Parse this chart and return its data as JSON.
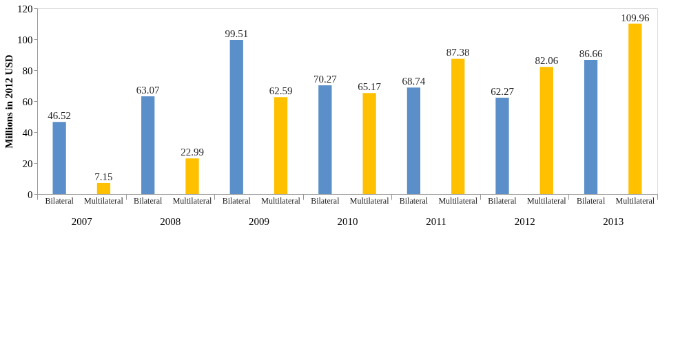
{
  "chart_data": {
    "type": "bar",
    "ylabel": "Millions in 2012 USD",
    "categories": [
      "2007",
      "2008",
      "2009",
      "2010",
      "2011",
      "2012",
      "2013"
    ],
    "series": [
      {
        "name": "Bilateral",
        "color": "#5b8fc9",
        "values": [
          46.52,
          63.07,
          99.51,
          70.27,
          68.74,
          62.27,
          86.66
        ]
      },
      {
        "name": "Multilateral",
        "color": "#ffc000",
        "values": [
          7.15,
          22.99,
          62.59,
          65.17,
          87.38,
          82.06,
          109.96
        ]
      }
    ],
    "ylim": [
      0,
      120
    ],
    "yticks": [
      0,
      20,
      40,
      60,
      80,
      100,
      120
    ],
    "grid": false,
    "legend": false,
    "data_labels": true
  }
}
